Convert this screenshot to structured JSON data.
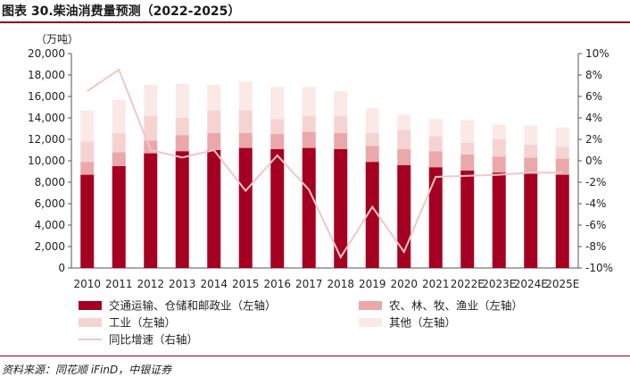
{
  "title": "图表 30.柴油消费量预测（2022-2025）",
  "source": "资料来源：同花顺 iFinD，中银证券",
  "chart_data": {
    "type": "bar",
    "stacked": true,
    "unit_label": "（万吨）",
    "categories": [
      "2010",
      "2011",
      "2012",
      "2013",
      "2014",
      "2015",
      "2016",
      "2017",
      "2018",
      "2019",
      "2020",
      "2021",
      "2022E",
      "2023E",
      "2024E",
      "2025E"
    ],
    "series": [
      {
        "name": "交通运输、仓储和邮政业（左轴）",
        "type": "bar",
        "axis": "left",
        "color": "#a50021",
        "values": [
          8700,
          9500,
          10700,
          10900,
          11000,
          11200,
          11100,
          11200,
          11100,
          9900,
          9600,
          9400,
          9100,
          8900,
          8800,
          8700
        ]
      },
      {
        "name": "农、林、牧、渔业（左轴）",
        "type": "bar",
        "axis": "left",
        "color": "#eaa8ab",
        "values": [
          1200,
          1300,
          1200,
          1500,
          1600,
          1400,
          1400,
          1500,
          1500,
          1500,
          1500,
          1500,
          1500,
          1500,
          1500,
          1500
        ]
      },
      {
        "name": "工业（左轴）",
        "type": "bar",
        "axis": "left",
        "color": "#f6d3d3",
        "values": [
          1900,
          1800,
          2300,
          1600,
          2100,
          2100,
          1400,
          1500,
          1600,
          1200,
          1800,
          1400,
          1100,
          1600,
          1200,
          1100
        ]
      },
      {
        "name": "其他（左轴）",
        "type": "bar",
        "axis": "left",
        "color": "#fbe9e8",
        "values": [
          2900,
          3100,
          2900,
          3200,
          2400,
          2700,
          3000,
          2700,
          2300,
          2300,
          1400,
          1600,
          2100,
          1400,
          1800,
          1800
        ]
      },
      {
        "name": "同比增速（右轴）",
        "type": "line",
        "axis": "right",
        "color": "#f2c6c6",
        "values": [
          6.5,
          8.5,
          1.0,
          0.3,
          1.0,
          -2.8,
          0.5,
          -2.7,
          -9.0,
          -4.3,
          -8.5,
          -1.5,
          -1.4,
          -1.3,
          -1.1,
          -1.1
        ]
      }
    ],
    "left_axis": {
      "min": 0,
      "max": 20000,
      "step": 2000,
      "tick_labels": [
        "0",
        "2,000",
        "4,000",
        "6,000",
        "8,000",
        "10,000",
        "12,000",
        "14,000",
        "16,000",
        "18,000",
        "20,000"
      ]
    },
    "right_axis": {
      "min": -10,
      "max": 10,
      "step": 2,
      "tick_labels": [
        "-10%",
        "-8%",
        "-6%",
        "-4%",
        "-2%",
        "0%",
        "2%",
        "4%",
        "6%",
        "8%",
        "10%"
      ]
    },
    "grid": false,
    "legend_position": "bottom"
  }
}
